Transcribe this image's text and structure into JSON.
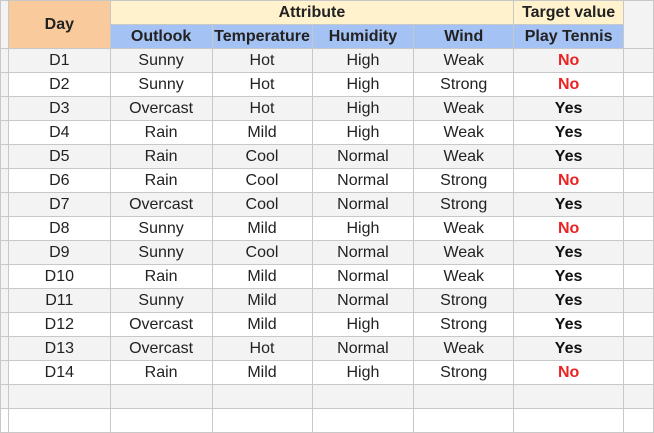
{
  "header": {
    "day": "Day",
    "attribute": "Attribute",
    "target": "Target value"
  },
  "columns": {
    "outlook": "Outlook",
    "temperature": "Temperature",
    "humidity": "Humidity",
    "wind": "Wind",
    "play": "Play Tennis"
  },
  "rows": [
    {
      "day": "D1",
      "outlook": "Sunny",
      "temperature": "Hot",
      "humidity": "High",
      "wind": "Weak",
      "play": "No"
    },
    {
      "day": "D2",
      "outlook": "Sunny",
      "temperature": "Hot",
      "humidity": "High",
      "wind": "Strong",
      "play": "No"
    },
    {
      "day": "D3",
      "outlook": "Overcast",
      "temperature": "Hot",
      "humidity": "High",
      "wind": "Weak",
      "play": "Yes"
    },
    {
      "day": "D4",
      "outlook": "Rain",
      "temperature": "Mild",
      "humidity": "High",
      "wind": "Weak",
      "play": "Yes"
    },
    {
      "day": "D5",
      "outlook": "Rain",
      "temperature": "Cool",
      "humidity": "Normal",
      "wind": "Weak",
      "play": "Yes"
    },
    {
      "day": "D6",
      "outlook": "Rain",
      "temperature": "Cool",
      "humidity": "Normal",
      "wind": "Strong",
      "play": "No"
    },
    {
      "day": "D7",
      "outlook": "Overcast",
      "temperature": "Cool",
      "humidity": "Normal",
      "wind": "Strong",
      "play": "Yes"
    },
    {
      "day": "D8",
      "outlook": "Sunny",
      "temperature": "Mild",
      "humidity": "High",
      "wind": "Weak",
      "play": "No"
    },
    {
      "day": "D9",
      "outlook": "Sunny",
      "temperature": "Cool",
      "humidity": "Normal",
      "wind": "Weak",
      "play": "Yes"
    },
    {
      "day": "D10",
      "outlook": "Rain",
      "temperature": "Mild",
      "humidity": "Normal",
      "wind": "Weak",
      "play": "Yes"
    },
    {
      "day": "D11",
      "outlook": "Sunny",
      "temperature": "Mild",
      "humidity": "Normal",
      "wind": "Strong",
      "play": "Yes"
    },
    {
      "day": "D12",
      "outlook": "Overcast",
      "temperature": "Mild",
      "humidity": "High",
      "wind": "Strong",
      "play": "Yes"
    },
    {
      "day": "D13",
      "outlook": "Overcast",
      "temperature": "Hot",
      "humidity": "Normal",
      "wind": "Weak",
      "play": "Yes"
    },
    {
      "day": "D14",
      "outlook": "Rain",
      "temperature": "Mild",
      "humidity": "High",
      "wind": "Strong",
      "play": "No"
    }
  ],
  "colors": {
    "day_header_bg": "#f9cb9c",
    "group_header_bg": "#fff2cc",
    "column_header_bg": "#a4c2f4",
    "no_text": "#ea2222",
    "yes_text": "#111111"
  }
}
